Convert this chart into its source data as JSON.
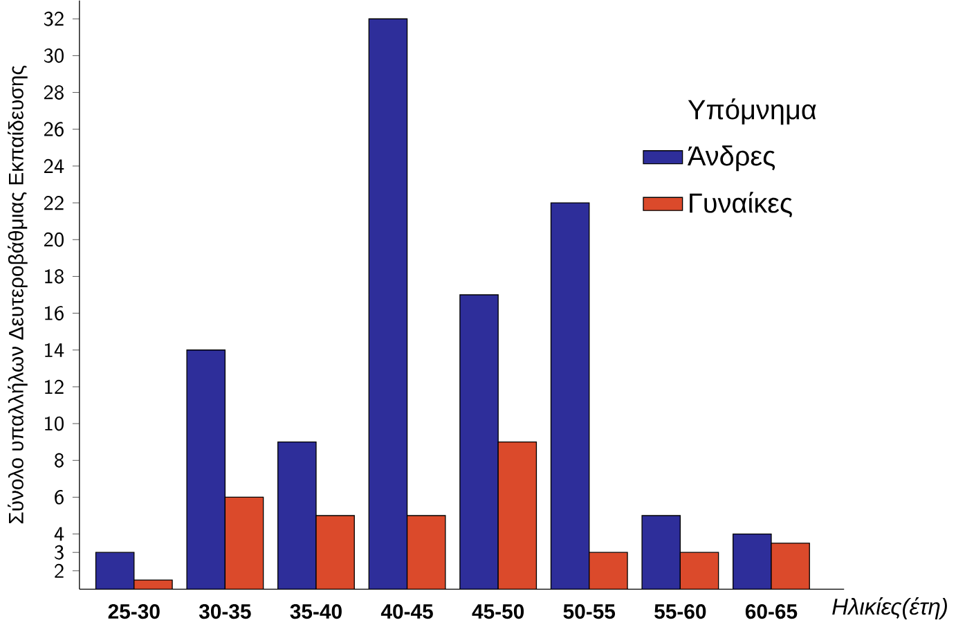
{
  "chart_data": {
    "type": "bar",
    "xlabel": "Ηλικίες(έτη)",
    "ylabel": "Σύνολο υπαλλήλων Δευτεροβάθμιας Εκπαίδευσης",
    "legend_title": "Υπόμνημα",
    "legend": "top right",
    "categories": [
      "25-30",
      "30-35",
      "35-40",
      "40-45",
      "45-50",
      "50-55",
      "55-60",
      "60-65"
    ],
    "series": [
      {
        "name": "Άνδρες",
        "color": "#2e2e9a",
        "values": [
          3,
          14,
          9,
          32,
          17,
          22,
          5,
          4
        ]
      },
      {
        "name": "Γυναίκες",
        "color": "#db4a2b",
        "values": [
          1.5,
          6,
          5,
          5,
          9,
          3,
          3,
          3.5
        ]
      }
    ],
    "ylim": [
      1,
      33
    ],
    "yticks": [
      2,
      3,
      4,
      6,
      8,
      10,
      12,
      14,
      16,
      18,
      20,
      22,
      24,
      26,
      28,
      30,
      32
    ],
    "grid": false
  }
}
